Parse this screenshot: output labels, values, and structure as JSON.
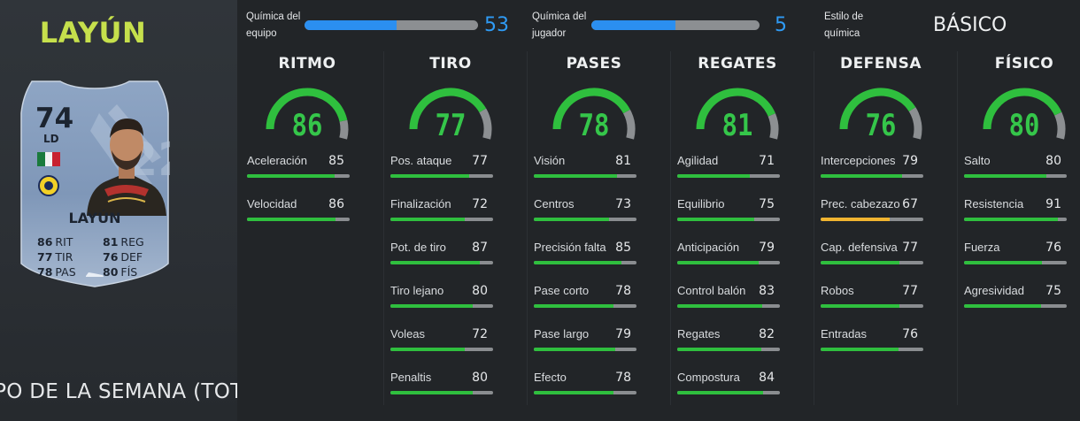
{
  "player": {
    "name": "LAYÚN",
    "promo": "IPO DE LA SEMANA (TOTW)",
    "card": {
      "rating": "74",
      "position": "LD",
      "name": "LAYÚN",
      "stats": [
        {
          "value": "86",
          "label": "RIT"
        },
        {
          "value": "81",
          "label": "REG"
        },
        {
          "value": "77",
          "label": "TIR"
        },
        {
          "value": "76",
          "label": "DEF"
        },
        {
          "value": "78",
          "label": "PAS"
        },
        {
          "value": "80",
          "label": "FÍS"
        }
      ]
    }
  },
  "chemistry": {
    "team_label_1": "Química del",
    "team_label_2": "equipo",
    "team_value": "53",
    "team_fraction": 0.53,
    "player_label_1": "Química del",
    "player_label_2": "jugador",
    "player_value": "5",
    "player_fraction": 0.5,
    "style_label_1": "Estilo de",
    "style_label_2": "química",
    "style_value": "BÁSICO"
  },
  "colors": {
    "accent_green": "#35c64a",
    "bar_green": "#2fbf3e",
    "bar_yellow": "#f0b430",
    "chem_blue": "#2b8ff0",
    "name_lime": "#c6e04c"
  },
  "columns": [
    {
      "title": "RITMO",
      "value": "86",
      "fraction": 0.86,
      "stats": [
        {
          "label": "Aceleración",
          "value": "85",
          "fraction": 0.85,
          "color": "green"
        },
        {
          "label": "Velocidad",
          "value": "86",
          "fraction": 0.86,
          "color": "green"
        }
      ]
    },
    {
      "title": "TIRO",
      "value": "77",
      "fraction": 0.77,
      "stats": [
        {
          "label": "Pos. ataque",
          "value": "77",
          "fraction": 0.77,
          "color": "green"
        },
        {
          "label": "Finalización",
          "value": "72",
          "fraction": 0.72,
          "color": "green"
        },
        {
          "label": "Pot. de tiro",
          "value": "87",
          "fraction": 0.87,
          "color": "green"
        },
        {
          "label": "Tiro lejano",
          "value": "80",
          "fraction": 0.8,
          "color": "green"
        },
        {
          "label": "Voleas",
          "value": "72",
          "fraction": 0.72,
          "color": "green"
        },
        {
          "label": "Penaltis",
          "value": "80",
          "fraction": 0.8,
          "color": "green"
        }
      ]
    },
    {
      "title": "PASES",
      "value": "78",
      "fraction": 0.78,
      "stats": [
        {
          "label": "Visión",
          "value": "81",
          "fraction": 0.81,
          "color": "green"
        },
        {
          "label": "Centros",
          "value": "73",
          "fraction": 0.73,
          "color": "green"
        },
        {
          "label": "Precisión falta",
          "value": "85",
          "fraction": 0.85,
          "color": "green"
        },
        {
          "label": "Pase corto",
          "value": "78",
          "fraction": 0.78,
          "color": "green"
        },
        {
          "label": "Pase largo",
          "value": "79",
          "fraction": 0.79,
          "color": "green"
        },
        {
          "label": "Efecto",
          "value": "78",
          "fraction": 0.78,
          "color": "green"
        }
      ]
    },
    {
      "title": "REGATES",
      "value": "81",
      "fraction": 0.81,
      "stats": [
        {
          "label": "Agilidad",
          "value": "71",
          "fraction": 0.71,
          "color": "green"
        },
        {
          "label": "Equilibrio",
          "value": "75",
          "fraction": 0.75,
          "color": "green"
        },
        {
          "label": "Anticipación",
          "value": "79",
          "fraction": 0.79,
          "color": "green"
        },
        {
          "label": "Control balón",
          "value": "83",
          "fraction": 0.83,
          "color": "green"
        },
        {
          "label": "Regates",
          "value": "82",
          "fraction": 0.82,
          "color": "green"
        },
        {
          "label": "Compostura",
          "value": "84",
          "fraction": 0.84,
          "color": "green"
        }
      ]
    },
    {
      "title": "DEFENSA",
      "value": "76",
      "fraction": 0.76,
      "stats": [
        {
          "label": "Intercepciones",
          "value": "79",
          "fraction": 0.79,
          "color": "green"
        },
        {
          "label": "Prec. cabezazo",
          "value": "67",
          "fraction": 0.67,
          "color": "yellow"
        },
        {
          "label": "Cap. defensiva",
          "value": "77",
          "fraction": 0.77,
          "color": "green"
        },
        {
          "label": "Robos",
          "value": "77",
          "fraction": 0.77,
          "color": "green"
        },
        {
          "label": "Entradas",
          "value": "76",
          "fraction": 0.76,
          "color": "green"
        }
      ]
    },
    {
      "title": "FÍSICO",
      "value": "80",
      "fraction": 0.8,
      "stats": [
        {
          "label": "Salto",
          "value": "80",
          "fraction": 0.8,
          "color": "green"
        },
        {
          "label": "Resistencia",
          "value": "91",
          "fraction": 0.91,
          "color": "green"
        },
        {
          "label": "Fuerza",
          "value": "76",
          "fraction": 0.76,
          "color": "green"
        },
        {
          "label": "Agresividad",
          "value": "75",
          "fraction": 0.75,
          "color": "green"
        }
      ]
    }
  ]
}
